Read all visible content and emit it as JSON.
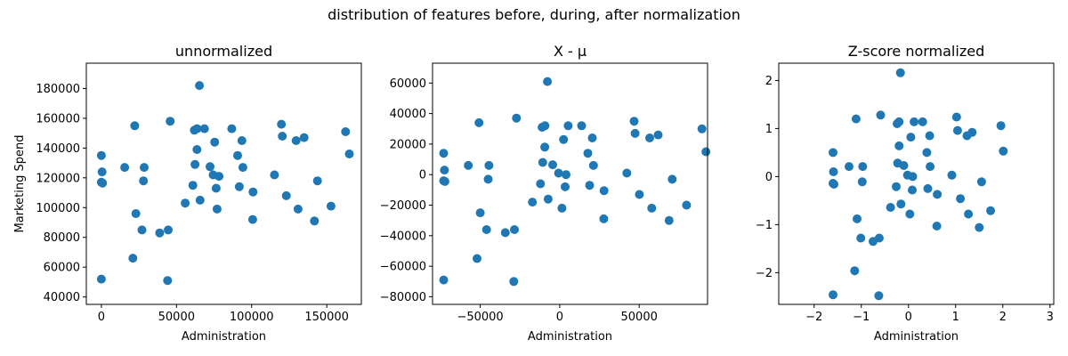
{
  "figure": {
    "suptitle": "distribution of features before, during, after normalization"
  },
  "chart_data": [
    {
      "type": "scatter",
      "title": "unnormalized",
      "xlabel": "Administration",
      "ylabel": "Marketing Spend",
      "color": "#1f77b4",
      "xlim": [
        -10000,
        173000
      ],
      "ylim": [
        35000,
        197000
      ],
      "xticks": [
        0,
        50000,
        100000,
        150000
      ],
      "xtick_labels": [
        "0",
        "50000",
        "100000",
        "150000"
      ],
      "yticks": [
        40000,
        60000,
        80000,
        100000,
        120000,
        140000,
        160000,
        180000
      ],
      "ytick_labels": [
        "40000",
        "60000",
        "80000",
        "100000",
        "120000",
        "140000",
        "160000",
        "180000"
      ],
      "x": [
        0,
        0,
        800,
        500,
        0,
        15500,
        21000,
        22200,
        23000,
        27000,
        28000,
        28500,
        38800,
        44100,
        44500,
        45800,
        55800,
        60900,
        61900,
        62300,
        63600,
        63700,
        65300,
        65700,
        68600,
        72300,
        74400,
        75400,
        76400,
        77000,
        78300,
        86800,
        90700,
        91800,
        93500,
        94200,
        100700,
        100900,
        115200,
        119800,
        120400,
        123100,
        129600,
        130900,
        134900,
        141800,
        143800,
        152800,
        162500,
        165000
      ],
      "y": [
        135000,
        117000,
        116500,
        124000,
        52000,
        127000,
        66000,
        155000,
        96000,
        85000,
        118000,
        127000,
        83000,
        51000,
        85000,
        158000,
        103000,
        115000,
        152000,
        129000,
        139000,
        153000,
        182000,
        105000,
        153000,
        127500,
        122000,
        144000,
        113000,
        99000,
        121000,
        153000,
        135000,
        114000,
        145000,
        127000,
        92000,
        110500,
        122000,
        156000,
        148000,
        108000,
        145000,
        99000,
        147000,
        91000,
        118000,
        101000,
        151000,
        136000
      ]
    },
    {
      "type": "scatter",
      "title": "X - μ",
      "xlabel": "Administration",
      "ylabel": "",
      "color": "#1f77b4",
      "xlim": [
        -80000,
        93000
      ],
      "ylim": [
        -85000,
        73000
      ],
      "xticks": [
        -50000,
        0,
        50000
      ],
      "xtick_labels": [
        "−50000",
        "0",
        "50000"
      ],
      "yticks": [
        -80000,
        -60000,
        -40000,
        -20000,
        0,
        20000,
        40000,
        60000
      ],
      "ytick_labels": [
        "−80000",
        "−60000",
        "−40000",
        "−20000",
        "0",
        "20000",
        "40000",
        "60000"
      ],
      "x": [
        -73000,
        -73000,
        -72200,
        -72500,
        -73000,
        -57500,
        -52000,
        -50800,
        -50000,
        -46000,
        -45000,
        -44500,
        -34200,
        -28900,
        -28500,
        -27200,
        -17200,
        -12100,
        -11100,
        -10700,
        -9400,
        -9300,
        -7700,
        -7300,
        -4400,
        -700,
        1400,
        2400,
        3400,
        4000,
        5300,
        13800,
        17700,
        18800,
        20500,
        21200,
        27700,
        27900,
        42200,
        46800,
        47400,
        50100,
        56600,
        57900,
        61900,
        68800,
        70800,
        79800,
        89500,
        92000
      ],
      "y": [
        14000,
        -4000,
        -4500,
        3000,
        -69000,
        6000,
        -55000,
        34000,
        -25000,
        -36000,
        -3000,
        6000,
        -38000,
        -70000,
        -36000,
        37000,
        -18000,
        -6000,
        31000,
        8000,
        18000,
        32000,
        61000,
        -16000,
        6500,
        1000,
        -22000,
        23000,
        -8000,
        0,
        32000,
        32000,
        14000,
        -7000,
        24000,
        6000,
        -29000,
        -10500,
        1000,
        35000,
        27000,
        -13000,
        24000,
        -22000,
        26000,
        -30000,
        -3000,
        -20000,
        30000,
        15000
      ]
    },
    {
      "type": "scatter",
      "title": "Z-score normalized",
      "xlabel": "Administration",
      "ylabel": "",
      "color": "#1f77b4",
      "xlim": [
        -2.75,
        3.08
      ],
      "ylim": [
        -2.66,
        2.36
      ],
      "xticks": [
        -2,
        -1,
        0,
        1,
        2,
        3
      ],
      "xtick_labels": [
        "−2",
        "−1",
        "0",
        "1",
        "2",
        "3"
      ],
      "yticks": [
        -2,
        -1,
        0,
        1,
        2
      ],
      "ytick_labels": [
        "−2",
        "−1",
        "0",
        "1",
        "2"
      ],
      "x": [
        -1.6,
        -1.6,
        -1.58,
        -1.59,
        -1.6,
        -1.26,
        -1.14,
        -1.11,
        -1.09,
        -1.01,
        -0.98,
        -0.97,
        -0.75,
        -0.63,
        -0.62,
        -0.59,
        -0.38,
        -0.26,
        -0.24,
        -0.23,
        -0.2,
        -0.2,
        -0.17,
        -0.16,
        -0.1,
        -0.02,
        0.03,
        0.05,
        0.08,
        0.09,
        0.12,
        0.3,
        0.39,
        0.41,
        0.45,
        0.46,
        0.6,
        0.61,
        0.92,
        1.02,
        1.04,
        1.1,
        1.24,
        1.27,
        1.35,
        1.5,
        1.55,
        1.74,
        1.96,
        2.01
      ],
      "y": [
        0.5,
        -0.14,
        -0.16,
        0.1,
        -2.46,
        0.21,
        -1.96,
        1.2,
        -0.88,
        -1.28,
        -0.11,
        0.21,
        -1.35,
        -2.48,
        -1.28,
        1.28,
        -0.64,
        -0.21,
        1.1,
        0.28,
        0.64,
        1.14,
        2.16,
        -0.57,
        0.23,
        0.03,
        -0.78,
        0.82,
        -0.28,
        0,
        1.14,
        1.14,
        0.5,
        -0.25,
        0.85,
        0.21,
        -1.03,
        -0.37,
        0.03,
        1.24,
        0.96,
        -0.46,
        0.85,
        -0.78,
        0.92,
        -1.06,
        -0.11,
        -0.71,
        1.06,
        0.53
      ]
    }
  ]
}
